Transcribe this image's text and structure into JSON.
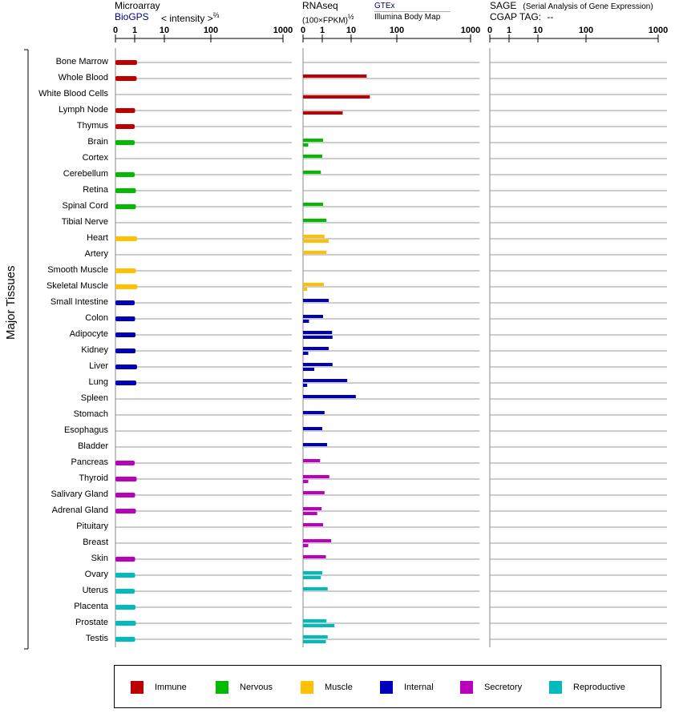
{
  "headers": {
    "microarray": {
      "title": "Microarray",
      "source": "BioGPS",
      "scale_label": "< intensity >",
      "scale_exponent": "⅔"
    },
    "rnaseq": {
      "title": "RNAseq",
      "unit": "(100×FPKM)",
      "unit_exponent": "½",
      "source_gtex": "GTEx",
      "source_illumina": "Illumina Body Map"
    },
    "sage": {
      "title": "SAGE",
      "subtitle": "(Serial Analysis of Gene Expression)",
      "cgap_label": "CGAP TAG:",
      "cgap_value": "--"
    }
  },
  "y_axis_label": "Major Tissues",
  "tick_labels": [
    "0",
    "1",
    "10",
    "100",
    "1000"
  ],
  "colors": {
    "Immune": "#c00000",
    "Nervous": "#00bb00",
    "Muscle": "#ffc000",
    "Internal": "#0000bb",
    "Secretory": "#bb00bb",
    "Reproductive": "#00bbbb"
  },
  "legend": [
    "Immune",
    "Nervous",
    "Muscle",
    "Internal",
    "Secretory",
    "Reproductive"
  ],
  "chart_data": {
    "type": "bar",
    "orientation": "horizontal",
    "x_scale": "power (0, 1, 10, 100, 1000 ticks)",
    "xlim": [
      0,
      1000
    ],
    "panels": [
      "Microarray",
      "RNAseq",
      "SAGE"
    ],
    "tissues": [
      {
        "name": "Bone Marrow",
        "group": "Immune",
        "microarray": 1.3,
        "gtex": null,
        "illumina": null
      },
      {
        "name": "Whole Blood",
        "group": "Immune",
        "microarray": 1.25,
        "gtex": 27,
        "illumina": null
      },
      {
        "name": "White Blood Cells",
        "group": "Immune",
        "microarray": null,
        "gtex": null,
        "illumina": 32
      },
      {
        "name": "Lymph Node",
        "group": "Immune",
        "microarray": 1.05,
        "gtex": null,
        "illumina": 6
      },
      {
        "name": "Thymus",
        "group": "Immune",
        "microarray": 1.0,
        "gtex": null,
        "illumina": null
      },
      {
        "name": "Brain",
        "group": "Nervous",
        "microarray": 1.0,
        "gtex": 1.1,
        "illumina": 0.02
      },
      {
        "name": "Cortex",
        "group": "Nervous",
        "microarray": null,
        "gtex": 1.0,
        "illumina": null
      },
      {
        "name": "Cerebellum",
        "group": "Nervous",
        "microarray": 1.0,
        "gtex": 0.8,
        "illumina": null
      },
      {
        "name": "Retina",
        "group": "Nervous",
        "microarray": 1.15,
        "gtex": null,
        "illumina": null
      },
      {
        "name": "Spinal Cord",
        "group": "Nervous",
        "microarray": 1.15,
        "gtex": 1.1,
        "illumina": null
      },
      {
        "name": "Tibial Nerve",
        "group": "Nervous",
        "microarray": null,
        "gtex": 1.6,
        "illumina": null
      },
      {
        "name": "Heart",
        "group": "Muscle",
        "microarray": 1.3,
        "gtex": 1.3,
        "illumina": 2.0
      },
      {
        "name": "Artery",
        "group": "Muscle",
        "microarray": null,
        "gtex": 1.6,
        "illumina": null
      },
      {
        "name": "Smooth Muscle",
        "group": "Muscle",
        "microarray": 1.15,
        "gtex": null,
        "illumina": null
      },
      {
        "name": "Skeletal Muscle",
        "group": "Muscle",
        "microarray": 1.35,
        "gtex": 1.2,
        "illumina": 0.01
      },
      {
        "name": "Small Intestine",
        "group": "Internal",
        "microarray": 1.0,
        "gtex": 2.0,
        "illumina": null
      },
      {
        "name": "Colon",
        "group": "Internal",
        "microarray": 1.05,
        "gtex": 1.1,
        "illumina": 0.03
      },
      {
        "name": "Adipocyte",
        "group": "Internal",
        "microarray": 1.1,
        "gtex": 2.7,
        "illumina": 2.8
      },
      {
        "name": "Kidney",
        "group": "Internal",
        "microarray": 1.1,
        "gtex": 2.0,
        "illumina": 0.02
      },
      {
        "name": "Liver",
        "group": "Internal",
        "microarray": 1.3,
        "gtex": 2.8,
        "illumina": 0.2
      },
      {
        "name": "Lung",
        "group": "Internal",
        "microarray": 1.2,
        "gtex": 8,
        "illumina": 0.01
      },
      {
        "name": "Spleen",
        "group": "Internal",
        "microarray": null,
        "gtex": 14,
        "illumina": null
      },
      {
        "name": "Stomach",
        "group": "Internal",
        "microarray": null,
        "gtex": 1.3,
        "illumina": null
      },
      {
        "name": "Esophagus",
        "group": "Internal",
        "microarray": null,
        "gtex": 1.0,
        "illumina": null
      },
      {
        "name": "Bladder",
        "group": "Internal",
        "microarray": null,
        "gtex": 1.7,
        "illumina": null
      },
      {
        "name": "Pancreas",
        "group": "Secretory",
        "microarray": 1.0,
        "gtex": 0.7,
        "illumina": null
      },
      {
        "name": "Thyroid",
        "group": "Secretory",
        "microarray": 1.25,
        "gtex": 2.1,
        "illumina": 0.02
      },
      {
        "name": "Salivary Gland",
        "group": "Secretory",
        "microarray": 1.05,
        "gtex": 1.3,
        "illumina": null
      },
      {
        "name": "Adrenal Gland",
        "group": "Secretory",
        "microarray": 1.15,
        "gtex": 0.9,
        "illumina": 0.4
      },
      {
        "name": "Pituitary",
        "group": "Secretory",
        "microarray": null,
        "gtex": 1.1,
        "illumina": null
      },
      {
        "name": "Breast",
        "group": "Secretory",
        "microarray": null,
        "gtex": 2.5,
        "illumina": 0.02
      },
      {
        "name": "Skin",
        "group": "Secretory",
        "microarray": 1.05,
        "gtex": 1.5,
        "illumina": null
      },
      {
        "name": "Ovary",
        "group": "Reproductive",
        "microarray": 1.05,
        "gtex": 1.0,
        "illumina": 0.8
      },
      {
        "name": "Uterus",
        "group": "Reproductive",
        "microarray": 1.0,
        "gtex": 1.8,
        "illumina": null
      },
      {
        "name": "Placenta",
        "group": "Reproductive",
        "microarray": 1.1,
        "gtex": null,
        "illumina": null
      },
      {
        "name": "Prostate",
        "group": "Reproductive",
        "microarray": 1.15,
        "gtex": 1.6,
        "illumina": 3.3
      },
      {
        "name": "Testis",
        "group": "Reproductive",
        "microarray": 1.05,
        "gtex": 1.8,
        "illumina": 1.5
      }
    ]
  }
}
